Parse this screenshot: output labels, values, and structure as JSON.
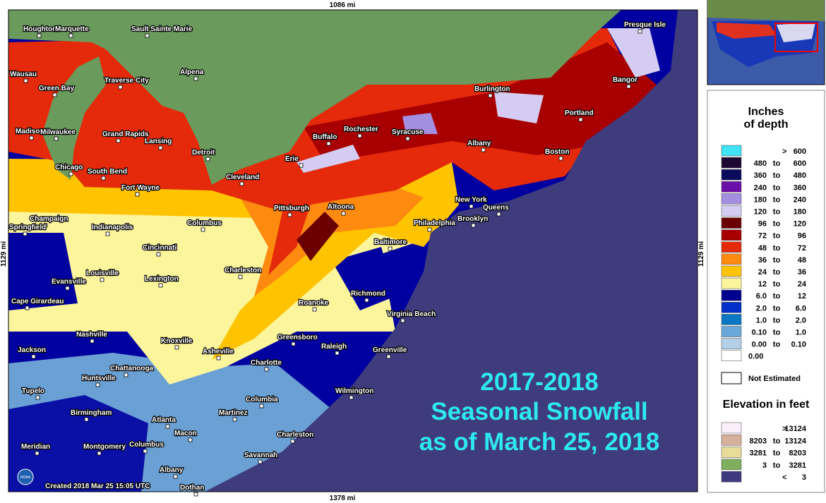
{
  "map": {
    "top_scale": "1086 mi",
    "bottom_scale": "1378 mi",
    "left_scale": "1129 mi",
    "right_scale": "1129 mi",
    "overlay": [
      "2017-2018",
      "Seasonal Snowfall",
      "as of March 25, 2018"
    ],
    "credit": "Created 2018 Mar 25 15:05 UTC",
    "logo": "NOAA",
    "cities": [
      "Houghton",
      "Marquette",
      "Sault Sainte Marie",
      "Presque Isle",
      "Wausau",
      "Alpena",
      "Green Bay",
      "Traverse City",
      "Bangor",
      "Burlington",
      "Portland",
      "Madison",
      "Milwaukee",
      "Grand Rapids",
      "Lansing",
      "Detroit",
      "Rochester",
      "Syracuse",
      "Buffalo",
      "Albany",
      "Boston",
      "Erie",
      "Chicago",
      "South Bend",
      "Cleveland",
      "Fort Wayne",
      "New York",
      "Queens",
      "Pittsburgh",
      "Altoona",
      "Brooklyn",
      "Champaign",
      "Springfield",
      "Indianapolis",
      "Columbus",
      "Philadelphia",
      "Baltimore",
      "Cincinnati",
      "Charleston",
      "Louisville",
      "Lexington",
      "Evansville",
      "Richmond",
      "Cape Girardeau",
      "Roanoke",
      "Virginia Beach",
      "Nashville",
      "Knoxville",
      "Greensboro",
      "Raleigh",
      "Greenville",
      "Jackson",
      "Asheville",
      "Charlotte",
      "Chattanooga",
      "Huntsville",
      "Wilmington",
      "Tupelo",
      "Columbia",
      "Birmingham",
      "Atlanta",
      "Martinez",
      "Macon",
      "Charleston",
      "Meridian",
      "Montgomery",
      "Columbus",
      "Savannah",
      "Albany",
      "Dothan"
    ]
  },
  "legend": {
    "title": [
      "Inches",
      "of depth"
    ],
    "rows": [
      {
        "color": "#3fe3f5",
        "text": [
          ">",
          "600"
        ]
      },
      {
        "color": "#1c0833",
        "text": [
          "480",
          "to",
          "600"
        ]
      },
      {
        "color": "#0b0b5e",
        "text": [
          "360",
          "to",
          "480"
        ]
      },
      {
        "color": "#6a0fa8",
        "text": [
          "240",
          "to",
          "360"
        ]
      },
      {
        "color": "#a48ee0",
        "text": [
          "180",
          "to",
          "240"
        ]
      },
      {
        "color": "#d4ccf2",
        "text": [
          "120",
          "to",
          "180"
        ]
      },
      {
        "color": "#6b0000",
        "text": [
          "96",
          "to",
          "120"
        ]
      },
      {
        "color": "#a80000",
        "text": [
          "72",
          "to",
          "96"
        ]
      },
      {
        "color": "#e42a0a",
        "text": [
          "48",
          "to",
          "72"
        ]
      },
      {
        "color": "#ff8a10",
        "text": [
          "36",
          "to",
          "48"
        ]
      },
      {
        "color": "#ffc300",
        "text": [
          "24",
          "to",
          "36"
        ]
      },
      {
        "color": "#fdf59c",
        "text": [
          "12",
          "to",
          "24"
        ]
      },
      {
        "color": "#00008f",
        "text": [
          "6.0",
          "to",
          "12"
        ]
      },
      {
        "color": "#0030c8",
        "text": [
          "2.0",
          "to",
          "6.0"
        ]
      },
      {
        "color": "#0878c4",
        "text": [
          "1.0",
          "to",
          "2.0"
        ]
      },
      {
        "color": "#6aa8dc",
        "text": [
          "0.10",
          "to",
          "1.0"
        ]
      },
      {
        "color": "#b4cfe8",
        "text": [
          "0.00",
          "to",
          "0.10"
        ]
      },
      {
        "color": "#ffffff",
        "text": [
          "0.00"
        ]
      }
    ],
    "not_estimated": "Not Estimated",
    "elevation_title": "Elevation in feet",
    "elevation_rows": [
      {
        "color": "#fbeefb",
        "text": [
          ">",
          "13124"
        ]
      },
      {
        "color": "#d6b09a",
        "text": [
          "8203",
          "to",
          "13124"
        ]
      },
      {
        "color": "#e8dc98",
        "text": [
          "3281",
          "to",
          "8203"
        ]
      },
      {
        "color": "#7fae5c",
        "text": [
          "3",
          "to",
          "3281"
        ]
      },
      {
        "color": "#3e3a80",
        "text": [
          "<",
          "3"
        ]
      }
    ]
  }
}
